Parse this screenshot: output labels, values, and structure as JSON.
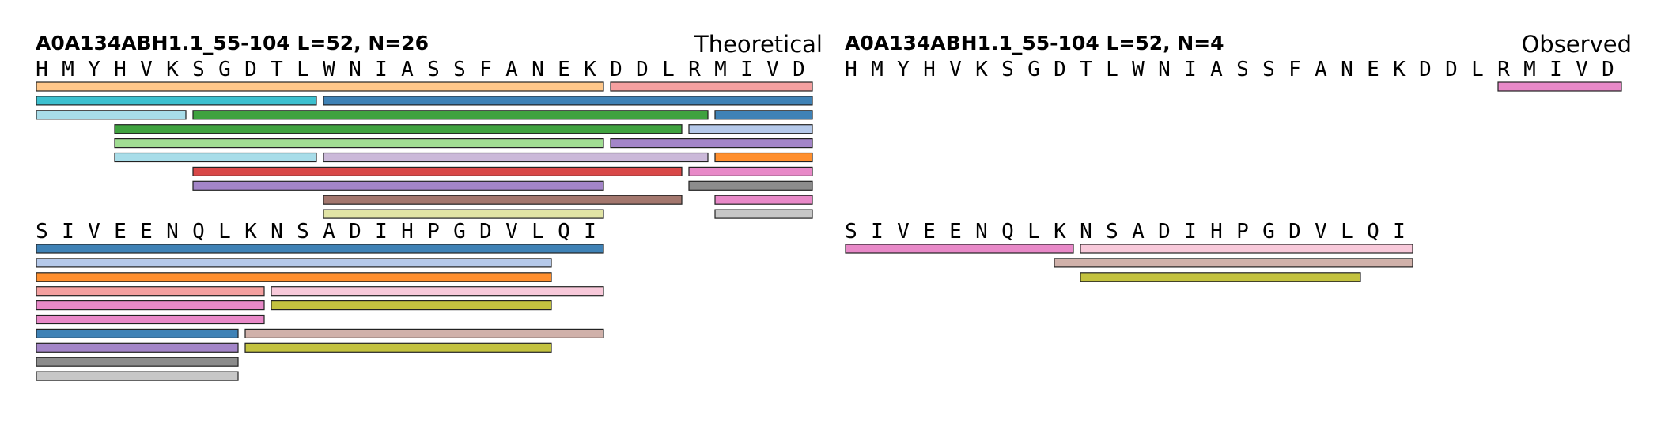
{
  "panels": [
    {
      "id": "theoretical",
      "title": "A0A134ABH1.1_55-104  L=52, N=26",
      "label": "Theoretical",
      "rows": [
        {
          "sequence": [
            "H",
            "M",
            "Y",
            "H",
            "V",
            "K",
            "S",
            "G",
            "D",
            "T",
            "L",
            "W",
            "N",
            "I",
            "A",
            "S",
            "S",
            "F",
            "A",
            "N",
            "E",
            "K",
            "D",
            "D",
            "L",
            "R",
            "M",
            "I",
            "V",
            "D"
          ],
          "peptides": [
            {
              "start": 0,
              "end": 21,
              "lane": 0,
              "color": "#ffc78a"
            },
            {
              "start": 22,
              "end": 29,
              "lane": 0,
              "color": "#f4a0a0"
            },
            {
              "start": 0,
              "end": 10,
              "lane": 1,
              "color": "#3cc0cf"
            },
            {
              "start": 11,
              "end": 29,
              "lane": 1,
              "color": "#3f82b6"
            },
            {
              "start": 0,
              "end": 5,
              "lane": 2,
              "color": "#a8dde9"
            },
            {
              "start": 6,
              "end": 25,
              "lane": 2,
              "color": "#3fa23f"
            },
            {
              "start": 26,
              "end": 29,
              "lane": 2,
              "color": "#3f82b6"
            },
            {
              "start": 3,
              "end": 24,
              "lane": 3,
              "color": "#3fa23f"
            },
            {
              "start": 25,
              "end": 29,
              "lane": 3,
              "color": "#b5c9ea"
            },
            {
              "start": 3,
              "end": 21,
              "lane": 4,
              "color": "#a1dd93"
            },
            {
              "start": 22,
              "end": 29,
              "lane": 4,
              "color": "#a385c8"
            },
            {
              "start": 3,
              "end": 10,
              "lane": 5,
              "color": "#a8dde9"
            },
            {
              "start": 11,
              "end": 25,
              "lane": 5,
              "color": "#cbb9d9"
            },
            {
              "start": 26,
              "end": 29,
              "lane": 5,
              "color": "#ff8f2e"
            },
            {
              "start": 6,
              "end": 24,
              "lane": 6,
              "color": "#d94848"
            },
            {
              "start": 25,
              "end": 29,
              "lane": 6,
              "color": "#e889c8"
            },
            {
              "start": 6,
              "end": 21,
              "lane": 7,
              "color": "#a385c8"
            },
            {
              "start": 25,
              "end": 29,
              "lane": 7,
              "color": "#8c8c8c"
            },
            {
              "start": 11,
              "end": 24,
              "lane": 8,
              "color": "#a3776e"
            },
            {
              "start": 26,
              "end": 29,
              "lane": 8,
              "color": "#e889c8"
            },
            {
              "start": 11,
              "end": 21,
              "lane": 9,
              "color": "#e1e4a5"
            },
            {
              "start": 26,
              "end": 29,
              "lane": 9,
              "color": "#c7c7c7"
            }
          ]
        },
        {
          "sequence": [
            "S",
            "I",
            "V",
            "E",
            "E",
            "N",
            "Q",
            "L",
            "K",
            "N",
            "S",
            "A",
            "D",
            "I",
            "H",
            "P",
            "G",
            "D",
            "V",
            "L",
            "Q",
            "I"
          ],
          "peptides": [
            {
              "start": 0,
              "end": 21,
              "lane": 0,
              "color": "#3f82b6"
            },
            {
              "start": 0,
              "end": 19,
              "lane": 1,
              "color": "#b5c9ea"
            },
            {
              "start": 0,
              "end": 19,
              "lane": 2,
              "color": "#ff8f2e"
            },
            {
              "start": 0,
              "end": 8,
              "lane": 3,
              "color": "#f4a0a0"
            },
            {
              "start": 9,
              "end": 21,
              "lane": 3,
              "color": "#f8c9da"
            },
            {
              "start": 0,
              "end": 8,
              "lane": 4,
              "color": "#e889c8"
            },
            {
              "start": 9,
              "end": 19,
              "lane": 4,
              "color": "#c3c23f"
            },
            {
              "start": 0,
              "end": 8,
              "lane": 5,
              "color": "#e889c8"
            },
            {
              "start": 0,
              "end": 7,
              "lane": 6,
              "color": "#3f82b6"
            },
            {
              "start": 8,
              "end": 21,
              "lane": 6,
              "color": "#d0b1aa"
            },
            {
              "start": 0,
              "end": 7,
              "lane": 7,
              "color": "#a385c8"
            },
            {
              "start": 8,
              "end": 19,
              "lane": 7,
              "color": "#c3c23f"
            },
            {
              "start": 0,
              "end": 7,
              "lane": 8,
              "color": "#8c8c8c"
            },
            {
              "start": 0,
              "end": 7,
              "lane": 9,
              "color": "#c7c7c7"
            }
          ]
        }
      ]
    },
    {
      "id": "observed",
      "title": "A0A134ABH1.1_55-104  L=52, N=4",
      "label": "Observed",
      "rows": [
        {
          "sequence": [
            "H",
            "M",
            "Y",
            "H",
            "V",
            "K",
            "S",
            "G",
            "D",
            "T",
            "L",
            "W",
            "N",
            "I",
            "A",
            "S",
            "S",
            "F",
            "A",
            "N",
            "E",
            "K",
            "D",
            "D",
            "L",
            "R",
            "M",
            "I",
            "V",
            "D"
          ],
          "peptides": [
            {
              "start": 25,
              "end": 29,
              "lane": 0,
              "color": "#e889c8"
            }
          ]
        },
        {
          "sequence": [
            "S",
            "I",
            "V",
            "E",
            "E",
            "N",
            "Q",
            "L",
            "K",
            "N",
            "S",
            "A",
            "D",
            "I",
            "H",
            "P",
            "G",
            "D",
            "V",
            "L",
            "Q",
            "I"
          ],
          "peptides": [
            {
              "start": 0,
              "end": 8,
              "lane": 0,
              "color": "#e889c8"
            },
            {
              "start": 9,
              "end": 21,
              "lane": 0,
              "color": "#f8c9da"
            },
            {
              "start": 8,
              "end": 21,
              "lane": 1,
              "color": "#d0b1aa"
            },
            {
              "start": 9,
              "end": 19,
              "lane": 2,
              "color": "#c3c23f"
            }
          ]
        }
      ]
    }
  ]
}
